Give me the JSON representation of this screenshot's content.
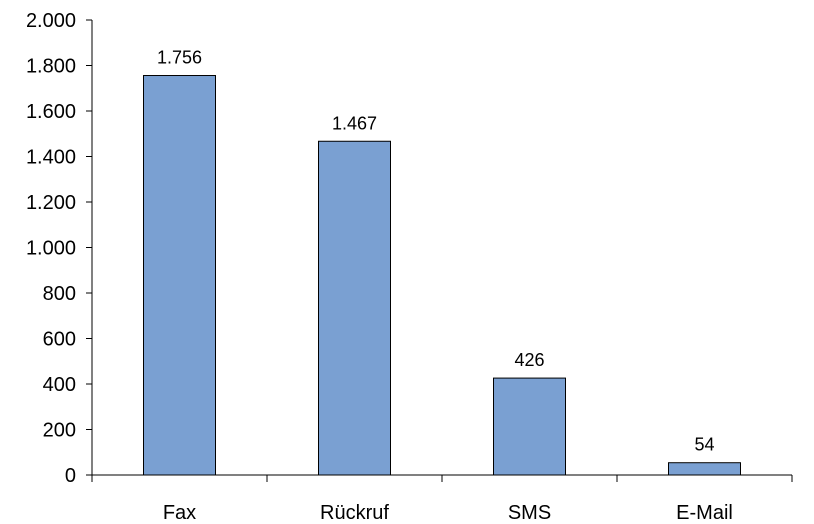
{
  "chart_data": {
    "type": "bar",
    "categories": [
      "Fax",
      "Rückruf",
      "SMS",
      "E-Mail"
    ],
    "values": [
      1756,
      1467,
      426,
      54
    ],
    "value_labels": [
      "1.756",
      "1.467",
      "426",
      "54"
    ],
    "y_ticks": [
      0,
      200,
      400,
      600,
      800,
      1000,
      1200,
      1400,
      1600,
      1800,
      2000
    ],
    "y_tick_labels": [
      "0",
      "200",
      "400",
      "600",
      "800",
      "1.000",
      "1.200",
      "1.400",
      "1.600",
      "1.800",
      "2.000"
    ],
    "ylim": [
      0,
      2000
    ],
    "grid": false,
    "legend": "none",
    "bar_color": "#7aa0d2"
  }
}
